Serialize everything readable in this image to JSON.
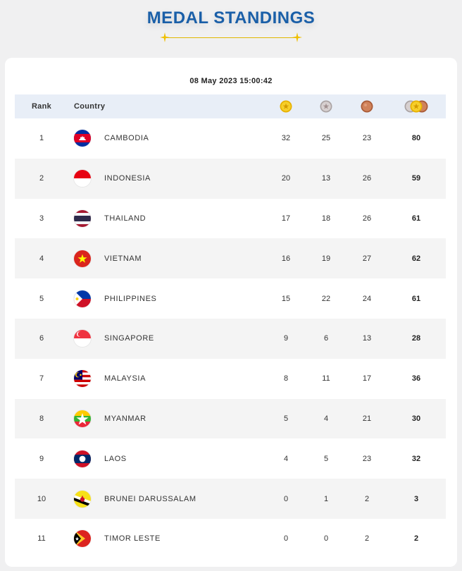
{
  "page": {
    "title": "MEDAL STANDINGS",
    "timestamp": "08 May 2023  15:00:42"
  },
  "table": {
    "headers": {
      "rank": "Rank",
      "country": "Country",
      "gold_icon": "gold-medal-icon",
      "silver_icon": "silver-medal-icon",
      "bronze_icon": "bronze-medal-icon",
      "total_icon": "total-medals-icon"
    },
    "rows": [
      {
        "rank": "1",
        "country": "CAMBODIA",
        "flag": "cambodia-flag-icon",
        "gold": "32",
        "silver": "25",
        "bronze": "23",
        "total": "80"
      },
      {
        "rank": "2",
        "country": "INDONESIA",
        "flag": "indonesia-flag-icon",
        "gold": "20",
        "silver": "13",
        "bronze": "26",
        "total": "59"
      },
      {
        "rank": "3",
        "country": "THAILAND",
        "flag": "thailand-flag-icon",
        "gold": "17",
        "silver": "18",
        "bronze": "26",
        "total": "61"
      },
      {
        "rank": "4",
        "country": "VIETNAM",
        "flag": "vietnam-flag-icon",
        "gold": "16",
        "silver": "19",
        "bronze": "27",
        "total": "62"
      },
      {
        "rank": "5",
        "country": "PHILIPPINES",
        "flag": "philippines-flag-icon",
        "gold": "15",
        "silver": "22",
        "bronze": "24",
        "total": "61"
      },
      {
        "rank": "6",
        "country": "SINGAPORE",
        "flag": "singapore-flag-icon",
        "gold": "9",
        "silver": "6",
        "bronze": "13",
        "total": "28"
      },
      {
        "rank": "7",
        "country": "MALAYSIA",
        "flag": "malaysia-flag-icon",
        "gold": "8",
        "silver": "11",
        "bronze": "17",
        "total": "36"
      },
      {
        "rank": "8",
        "country": "MYANMAR",
        "flag": "myanmar-flag-icon",
        "gold": "5",
        "silver": "4",
        "bronze": "21",
        "total": "30"
      },
      {
        "rank": "9",
        "country": "LAOS",
        "flag": "laos-flag-icon",
        "gold": "4",
        "silver": "5",
        "bronze": "23",
        "total": "32"
      },
      {
        "rank": "10",
        "country": "BRUNEI DARUSSALAM",
        "flag": "brunei-flag-icon",
        "gold": "0",
        "silver": "1",
        "bronze": "2",
        "total": "3"
      },
      {
        "rank": "11",
        "country": "TIMOR LESTE",
        "flag": "timor-leste-flag-icon",
        "gold": "0",
        "silver": "0",
        "bronze": "2",
        "total": "2"
      }
    ]
  },
  "colors": {
    "title": "#1a5fa8",
    "divider": "#e0b800",
    "header_bg": "#e8eef7",
    "alt_row_bg": "#f4f4f4",
    "gold": "#f2c31b",
    "silver": "#c9c2c2",
    "bronze": "#c8764c"
  }
}
